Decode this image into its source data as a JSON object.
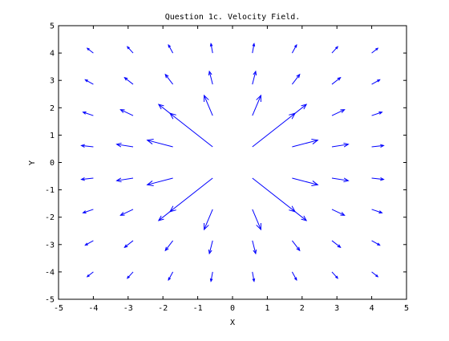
{
  "chart_data": {
    "type": "quiver",
    "title": "Question 1c. Velocity Field.",
    "xlabel": "X",
    "ylabel": "Y",
    "xlim": [
      -5,
      5
    ],
    "ylim": [
      -5,
      5
    ],
    "xticks": [
      "-5",
      "-4",
      "-3",
      "-2",
      "-1",
      "0",
      "1",
      "2",
      "3",
      "4",
      "5"
    ],
    "yticks": [
      "-5",
      "-4",
      "-3",
      "-2",
      "-1",
      "0",
      "1",
      "2",
      "3",
      "4",
      "5"
    ],
    "grid": false,
    "legend": false,
    "arrow_color": "#0000ff",
    "grid_positions": [
      -4.0,
      -2.857,
      -1.714,
      -0.571,
      0.571,
      1.714,
      2.857,
      4.0
    ],
    "field": "radial outward, magnitude decreasing with distance from origin"
  }
}
